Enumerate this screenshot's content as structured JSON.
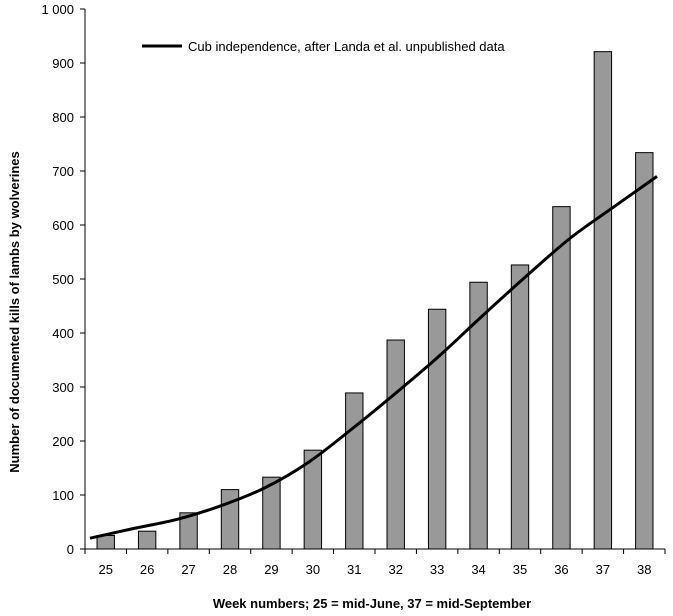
{
  "chart_data": {
    "type": "bar",
    "categories": [
      "25",
      "26",
      "27",
      "28",
      "29",
      "30",
      "31",
      "32",
      "33",
      "34",
      "35",
      "36",
      "37",
      "38"
    ],
    "series": [
      {
        "values": [
          25,
          33,
          67,
          110,
          133,
          183,
          289,
          387,
          444,
          494,
          526,
          634,
          921,
          734
        ]
      },
      {
        "name": "Cub independence, after Landa et al. unpublished data",
        "type": "line",
        "values": [
          20,
          38,
          55,
          80,
          113,
          160,
          222,
          288,
          357,
          432,
          505,
          575,
          633,
          690
        ]
      }
    ],
    "xlabel": "Week numbers; 25 = mid-June, 37 = mid-September",
    "ylabel": "Number of documented kills of lambs by wolverines",
    "ylim": [
      0,
      1000
    ],
    "yticks": [
      0,
      100,
      200,
      300,
      400,
      500,
      600,
      700,
      800,
      900,
      1000
    ],
    "ytick_labels": [
      "0",
      "100",
      "200",
      "300",
      "400",
      "500",
      "600",
      "700",
      "800",
      "900",
      "1 000"
    ],
    "legend": {
      "label": "Cub independence, after Landa et al. unpublished data",
      "placement": "top-left"
    },
    "grid": false,
    "colors": {
      "bar_fill": "#999999",
      "bar_stroke": "#000000",
      "line": "#000000",
      "axis": "#000000"
    }
  }
}
